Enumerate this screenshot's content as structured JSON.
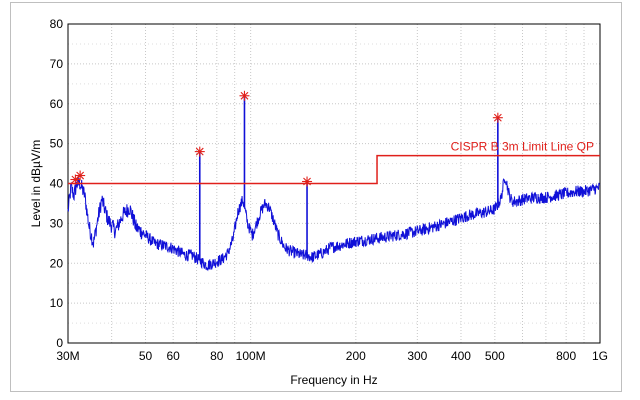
{
  "chart_data": {
    "type": "line",
    "xlabel": "Frequency in Hz",
    "ylabel": "Level in dBµV/m",
    "x_scale": "log",
    "xlim": [
      30000000,
      1000000000
    ],
    "ylim": [
      0,
      80
    ],
    "grid": true,
    "x_ticks": [
      {
        "value": 30000000,
        "label": "30M"
      },
      {
        "value": 50000000,
        "label": "50"
      },
      {
        "value": 60000000,
        "label": "60"
      },
      {
        "value": 80000000,
        "label": "80"
      },
      {
        "value": 100000000,
        "label": "100M"
      },
      {
        "value": 200000000,
        "label": "200"
      },
      {
        "value": 300000000,
        "label": "300"
      },
      {
        "value": 400000000,
        "label": "400"
      },
      {
        "value": 500000000,
        "label": "500"
      },
      {
        "value": 800000000,
        "label": "800"
      },
      {
        "value": 1000000000,
        "label": "1G"
      }
    ],
    "x_minor_grid": [
      40000000,
      70000000,
      90000000,
      600000000,
      700000000,
      900000000
    ],
    "y_ticks": [
      0,
      10,
      20,
      30,
      40,
      50,
      60,
      70,
      80
    ],
    "colors": {
      "trace": "#1010d8",
      "limit": "#e0201b",
      "marker": "#e0201b",
      "grid": "#c8c8c8"
    },
    "series": [
      {
        "x": [
          30000000,
          30600000,
          31200000,
          31800000,
          32500000,
          33500000,
          34500000,
          35500000,
          36500000,
          37500000,
          39000000,
          41000000,
          43000000,
          45000000,
          47000000,
          50000000,
          53000000,
          56000000,
          59000000,
          62000000,
          65000000,
          68000000,
          72000000,
          75000000,
          78000000,
          80000000,
          83000000,
          86000000,
          89000000,
          92000000,
          95000000,
          98000000,
          101000000,
          104000000,
          107000000,
          110000000,
          113000000,
          116000000,
          120000000,
          125000000,
          130000000,
          135000000,
          140000000,
          145000000,
          150000000,
          160000000,
          170000000,
          180000000,
          190000000,
          200000000,
          220000000,
          240000000,
          260000000,
          280000000,
          300000000,
          330000000,
          360000000,
          390000000,
          420000000,
          450000000,
          480000000,
          500000000,
          520000000,
          535000000,
          550000000,
          560000000,
          575000000,
          600000000,
          650000000,
          700000000,
          750000000,
          800000000,
          850000000,
          900000000,
          950000000,
          1000000000
        ],
        "values": [
          33,
          39,
          37,
          40,
          40,
          37,
          29,
          25,
          31,
          36,
          31,
          28,
          32,
          34,
          29,
          27,
          25,
          24.5,
          24,
          23,
          22,
          22,
          20.5,
          19.5,
          20,
          20.5,
          21,
          22.5,
          26,
          33,
          36,
          30,
          27,
          30,
          33,
          35,
          34,
          31,
          27,
          24,
          23,
          22.5,
          22,
          22,
          21.5,
          22.5,
          24,
          24.5,
          25,
          25.5,
          26,
          26.5,
          27,
          27.5,
          28,
          29,
          30,
          31,
          32,
          32.5,
          33,
          33.5,
          36,
          42,
          37,
          35.5,
          35.5,
          36,
          36.5,
          36.5,
          37,
          37.5,
          38,
          38,
          38.5,
          39
        ]
      }
    ],
    "spikes": [
      {
        "x": 71500000,
        "value": 48
      },
      {
        "x": 96000000,
        "value": 62
      },
      {
        "x": 145000000,
        "value": 40.5
      },
      {
        "x": 510000000,
        "value": 56.5
      }
    ],
    "markers": [
      {
        "x": 31500000,
        "value": 41
      },
      {
        "x": 32500000,
        "value": 42
      },
      {
        "x": 71500000,
        "value": 48
      },
      {
        "x": 96000000,
        "value": 62
      },
      {
        "x": 145000000,
        "value": 40.5
      },
      {
        "x": 510000000,
        "value": 56.5
      }
    ],
    "limit_line": {
      "name": "CISPR B 3m Limit Line QP",
      "x": [
        30000000,
        230000000,
        230000000,
        1000000000
      ],
      "values": [
        40,
        40,
        47,
        47
      ]
    }
  }
}
